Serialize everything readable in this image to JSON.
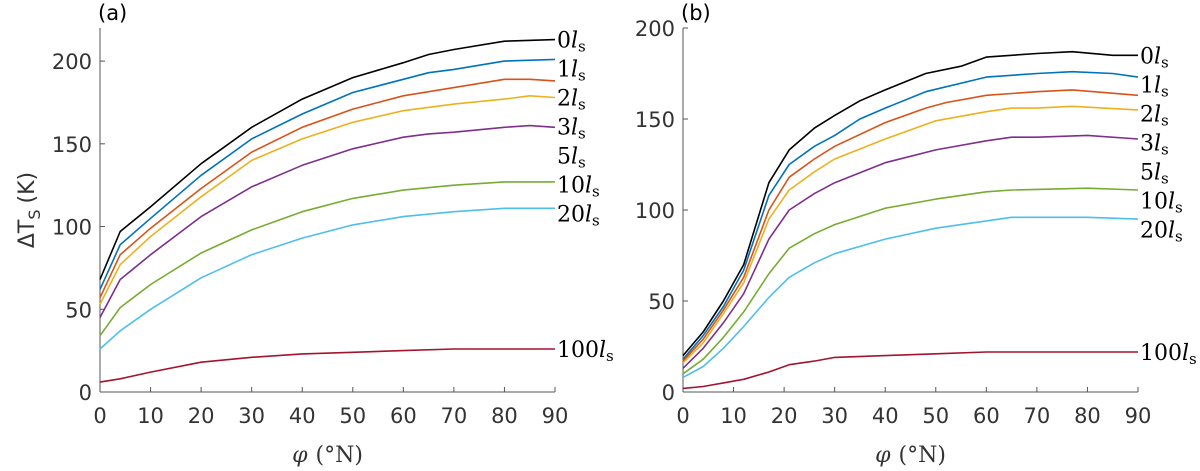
{
  "chart_data": [
    {
      "type": "line",
      "panel_label": "(a)",
      "xlabel_symbol": "φ",
      "xlabel_unit": "(°N)",
      "ylabel_main": "ΔT",
      "ylabel_sub": "S",
      "ylabel_unit": "(K)",
      "xlim": [
        0,
        90
      ],
      "ylim": [
        0,
        220
      ],
      "xticks": [
        0,
        10,
        20,
        30,
        40,
        50,
        60,
        70,
        80,
        90
      ],
      "yticks": [
        0,
        50,
        100,
        150,
        200
      ],
      "grid": false,
      "label_unit": "l",
      "label_sub": "s",
      "series": [
        {
          "name": "0",
          "color": "#000000",
          "x": [
            0,
            4,
            10,
            20,
            30,
            40,
            50,
            60,
            65,
            70,
            80,
            90
          ],
          "y": [
            68,
            97,
            112,
            138,
            160,
            177,
            190,
            199,
            204,
            207,
            212,
            213
          ]
        },
        {
          "name": "1",
          "color": "#0072BD",
          "x": [
            0,
            4,
            10,
            20,
            30,
            40,
            50,
            60,
            65,
            70,
            80,
            90
          ],
          "y": [
            62,
            89,
            105,
            131,
            153,
            168,
            181,
            189,
            193,
            195,
            200,
            201
          ]
        },
        {
          "name": "2",
          "color": "#D95319",
          "x": [
            0,
            4,
            10,
            20,
            30,
            40,
            50,
            60,
            70,
            80,
            85,
            90
          ],
          "y": [
            57,
            83,
            99,
            123,
            145,
            160,
            171,
            179,
            184,
            189,
            189,
            188
          ]
        },
        {
          "name": "3",
          "color": "#EDB120",
          "x": [
            0,
            4,
            10,
            20,
            30,
            40,
            50,
            60,
            70,
            80,
            85,
            90
          ],
          "y": [
            53,
            77,
            94,
            118,
            140,
            153,
            163,
            170,
            174,
            177,
            179,
            178
          ]
        },
        {
          "name": "5",
          "color": "#7E2F8E",
          "x": [
            0,
            4,
            10,
            20,
            30,
            40,
            50,
            60,
            65,
            70,
            80,
            85,
            90
          ],
          "y": [
            45,
            68,
            83,
            106,
            124,
            137,
            147,
            154,
            156,
            157,
            160,
            161,
            160
          ]
        },
        {
          "name": "10",
          "color": "#77AC30",
          "x": [
            0,
            4,
            10,
            20,
            30,
            40,
            50,
            60,
            70,
            80,
            90
          ],
          "y": [
            34,
            51,
            65,
            84,
            98,
            109,
            117,
            122,
            125,
            127,
            127
          ]
        },
        {
          "name": "20",
          "color": "#4DBEEE",
          "x": [
            0,
            4,
            10,
            20,
            30,
            40,
            50,
            60,
            70,
            80,
            90
          ],
          "y": [
            26,
            37,
            50,
            69,
            83,
            93,
            101,
            106,
            109,
            111,
            111
          ]
        },
        {
          "name": "100",
          "color": "#A2142F",
          "x": [
            0,
            4,
            10,
            20,
            30,
            40,
            50,
            60,
            70,
            80,
            90
          ],
          "y": [
            6,
            8,
            12,
            18,
            21,
            23,
            24,
            25,
            26,
            26,
            26
          ]
        }
      ]
    },
    {
      "type": "line",
      "panel_label": "(b)",
      "xlabel_symbol": "φ",
      "xlabel_unit": "(°N)",
      "xlim": [
        0,
        90
      ],
      "ylim": [
        0,
        200
      ],
      "xticks": [
        0,
        10,
        20,
        30,
        40,
        50,
        60,
        70,
        80,
        90
      ],
      "yticks": [
        0,
        50,
        100,
        150,
        200
      ],
      "grid": false,
      "label_unit": "l",
      "label_sub": "s",
      "series": [
        {
          "name": "0",
          "color": "#000000",
          "x": [
            0,
            4,
            8,
            12,
            17,
            21,
            26,
            30,
            35,
            40,
            48,
            55,
            60,
            70,
            77,
            85,
            90
          ],
          "y": [
            20,
            33,
            50,
            70,
            115,
            133,
            145,
            152,
            160,
            166,
            175,
            179,
            184,
            186,
            187,
            185,
            185
          ]
        },
        {
          "name": "1",
          "color": "#0072BD",
          "x": [
            0,
            4,
            8,
            12,
            17,
            21,
            26,
            30,
            35,
            40,
            48,
            60,
            70,
            77,
            85,
            90
          ],
          "y": [
            18,
            31,
            47,
            67,
            108,
            125,
            135,
            141,
            150,
            156,
            165,
            173,
            175,
            176,
            175,
            173
          ]
        },
        {
          "name": "2",
          "color": "#D95319",
          "x": [
            0,
            4,
            8,
            12,
            17,
            21,
            26,
            30,
            40,
            48,
            52,
            60,
            70,
            77,
            90
          ],
          "y": [
            17,
            29,
            45,
            63,
            100,
            118,
            128,
            135,
            148,
            156,
            159,
            163,
            165,
            166,
            163
          ]
        },
        {
          "name": "3",
          "color": "#EDB120",
          "x": [
            0,
            4,
            8,
            12,
            17,
            21,
            26,
            30,
            40,
            50,
            60,
            65,
            70,
            77,
            90
          ],
          "y": [
            16,
            27,
            43,
            60,
            95,
            111,
            121,
            128,
            139,
            149,
            154,
            156,
            156,
            157,
            155
          ]
        },
        {
          "name": "5",
          "color": "#7E2F8E",
          "x": [
            0,
            4,
            8,
            12,
            17,
            21,
            26,
            30,
            40,
            50,
            60,
            65,
            70,
            80,
            90
          ],
          "y": [
            13,
            24,
            38,
            54,
            84,
            100,
            109,
            115,
            126,
            133,
            138,
            140,
            140,
            141,
            139
          ]
        },
        {
          "name": "10",
          "color": "#77AC30",
          "x": [
            0,
            4,
            8,
            12,
            17,
            21,
            26,
            30,
            40,
            50,
            60,
            65,
            80,
            90
          ],
          "y": [
            10,
            18,
            30,
            44,
            65,
            79,
            87,
            92,
            101,
            106,
            110,
            111,
            112,
            111
          ]
        },
        {
          "name": "20",
          "color": "#4DBEEE",
          "x": [
            0,
            4,
            8,
            12,
            17,
            21,
            26,
            30,
            40,
            50,
            60,
            65,
            80,
            90
          ],
          "y": [
            8,
            14,
            24,
            36,
            52,
            63,
            71,
            76,
            84,
            90,
            94,
            96,
            96,
            95
          ]
        },
        {
          "name": "100",
          "color": "#A2142F",
          "x": [
            0,
            4,
            8,
            12,
            17,
            21,
            26,
            30,
            40,
            50,
            60,
            90
          ],
          "y": [
            2,
            3,
            5,
            7,
            11,
            15,
            17,
            19,
            20,
            21,
            22,
            22
          ]
        }
      ]
    }
  ]
}
